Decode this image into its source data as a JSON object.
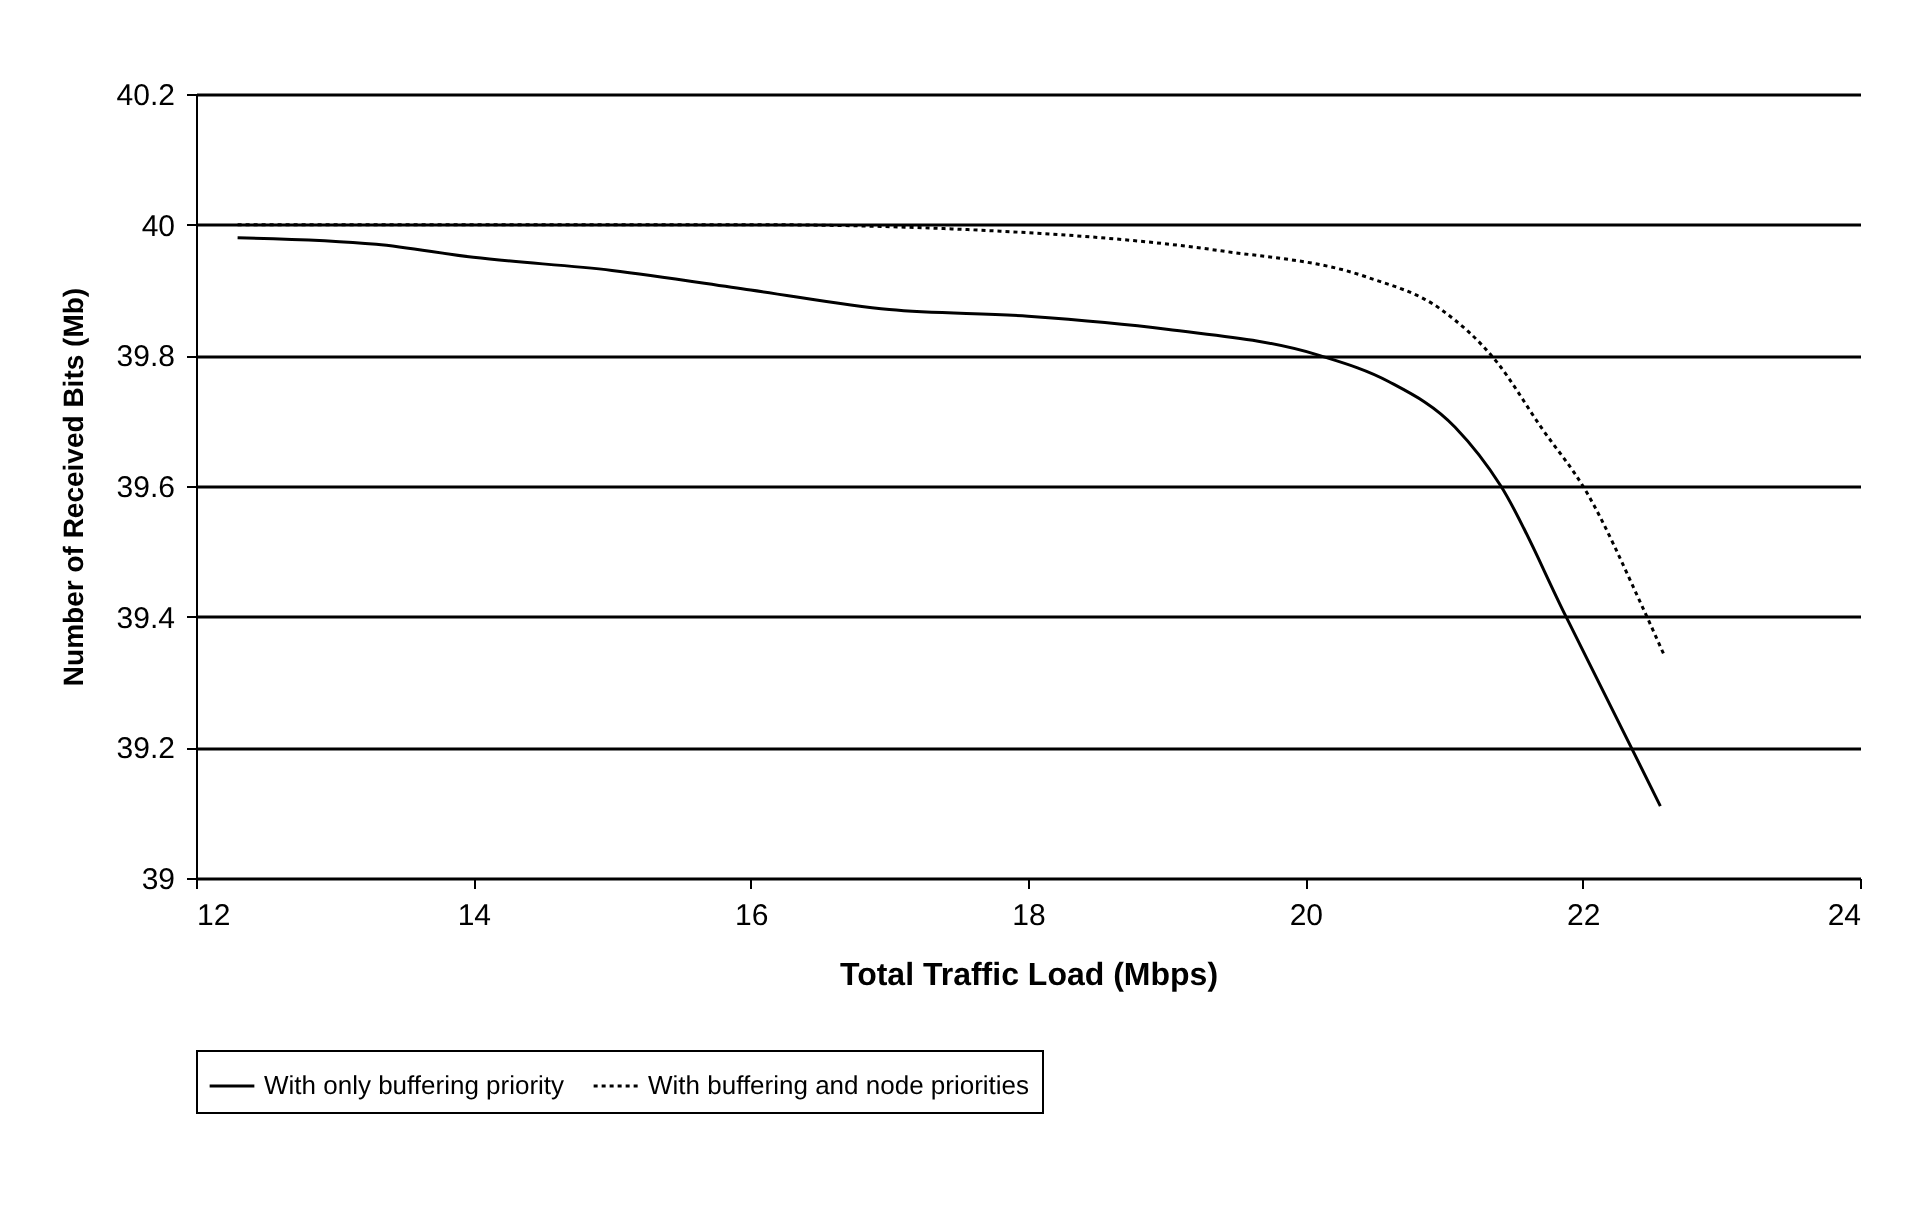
{
  "chart_data": {
    "type": "line",
    "xlabel": "Total Traffic Load (Mbps)",
    "ylabel": "Number of Received Bits (Mb)",
    "xlim": [
      12,
      24
    ],
    "xticks": [
      12,
      14,
      16,
      18,
      20,
      22,
      24
    ],
    "ylim": [
      39,
      40.2
    ],
    "yticks": [
      39,
      39.2,
      39.4,
      39.6,
      39.8,
      40,
      40.2
    ],
    "grid": "y",
    "legend": "bottom",
    "marker": "none",
    "series": [
      {
        "name": "With only buffering priority",
        "color": "#000000",
        "line_style": "solid",
        "x": [
          12.3,
          13.3,
          14,
          15,
          16,
          17,
          18,
          19,
          20.1,
          20.6,
          21.08,
          21.41,
          21.88,
          22.35,
          22.56
        ],
        "values": [
          39.98,
          39.97,
          39.95,
          39.93,
          39.9,
          39.87,
          39.86,
          39.84,
          39.8,
          39.76,
          39.69,
          39.6,
          39.4,
          39.2,
          39.11
        ]
      },
      {
        "name": "With buffering and node priorities",
        "color": "#000000",
        "line_style": "dotted",
        "x": [
          12.3,
          13.7,
          16,
          17.8,
          19.39,
          20.44,
          20.98,
          21.38,
          21.7,
          22.03,
          22.42,
          22.59
        ],
        "values": [
          40,
          40,
          40,
          39.99,
          39.96,
          39.92,
          39.87,
          39.79,
          39.69,
          39.59,
          39.42,
          39.34
        ]
      }
    ]
  }
}
